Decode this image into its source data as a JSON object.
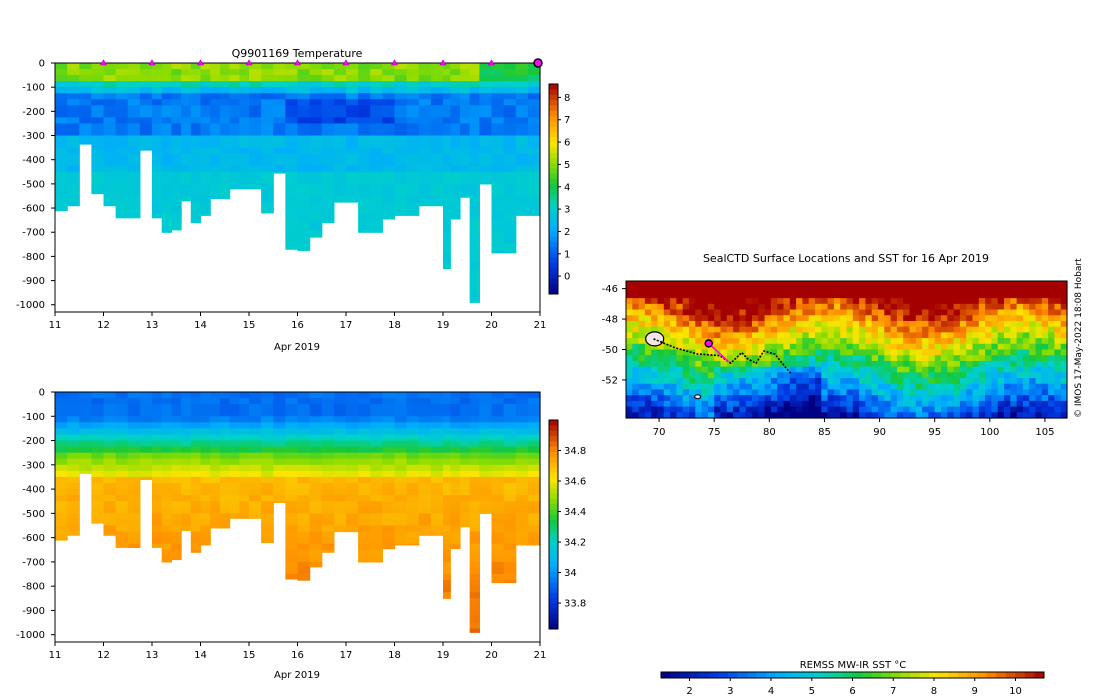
{
  "chart_data": [
    {
      "type": "heatmap",
      "title": "Q9901169  Temperature",
      "xlabel": "Apr 2019",
      "x_ticks": [
        "11",
        "12",
        "13",
        "14",
        "15",
        "16",
        "17",
        "18",
        "19",
        "20",
        "21"
      ],
      "y_ticks": [
        "0",
        "-100",
        "-200",
        "-300",
        "-400",
        "-500",
        "-600",
        "-700",
        "-800",
        "-900",
        "-1000"
      ],
      "xlim": [
        11,
        21
      ],
      "ylim": [
        -1030,
        0
      ],
      "colorbar": {
        "ticks": [
          "0",
          "1",
          "2",
          "3",
          "4",
          "5",
          "6",
          "7",
          "8"
        ],
        "range": [
          -0.8,
          8.6
        ]
      },
      "profile_times": [
        11.0,
        11.25,
        11.5,
        11.75,
        12.0,
        12.25,
        12.5,
        12.75,
        13.0,
        13.2,
        13.4,
        13.6,
        13.8,
        14.0,
        14.2,
        14.4,
        14.6,
        14.8,
        15.0,
        15.25,
        15.5,
        15.75,
        16.0,
        16.25,
        16.5,
        16.75,
        17.0,
        17.25,
        17.5,
        17.75,
        18.0,
        18.25,
        18.5,
        18.75,
        19.0,
        19.15,
        19.35,
        19.55,
        19.75,
        20.0,
        20.25,
        20.5,
        20.75
      ],
      "profile_depths": [
        610,
        590,
        335,
        540,
        590,
        640,
        640,
        360,
        640,
        700,
        690,
        570,
        660,
        630,
        560,
        560,
        520,
        520,
        520,
        620,
        455,
        770,
        775,
        720,
        660,
        575,
        575,
        700,
        700,
        645,
        630,
        630,
        590,
        590,
        850,
        645,
        555,
        990,
        500,
        785,
        785,
        630,
        630
      ],
      "surface_markers": [
        12,
        13,
        14,
        15,
        16,
        17,
        18,
        19,
        20
      ],
      "latest_marker": 21
    },
    {
      "type": "heatmap",
      "title": "",
      "xlabel": "Apr 2019",
      "x_ticks": [
        "11",
        "12",
        "13",
        "14",
        "15",
        "16",
        "17",
        "18",
        "19",
        "20",
        "21"
      ],
      "y_ticks": [
        "0",
        "-100",
        "-200",
        "-300",
        "-400",
        "-500",
        "-600",
        "-700",
        "-800",
        "-900",
        "-1000"
      ],
      "xlim": [
        11,
        21
      ],
      "ylim": [
        -1030,
        0
      ],
      "colorbar": {
        "ticks": [
          "33.8",
          "34",
          "34.2",
          "34.4",
          "34.6",
          "34.8"
        ],
        "range": [
          33.63,
          35.0
        ]
      }
    },
    {
      "type": "heatmap",
      "title": "SealCTD Surface Locations and SST for 16 Apr 2019",
      "x_ticks": [
        "70",
        "75",
        "80",
        "85",
        "90",
        "95",
        "100",
        "105"
      ],
      "y_ticks": [
        "-46",
        "-48",
        "-50",
        "-52"
      ],
      "xlim": [
        67,
        107
      ],
      "ylim": [
        -54.5,
        -45.5
      ],
      "credit": "© IMOS 17-May-2022 18:08 Hobart",
      "colorbar": {
        "label": "REMSS MW-IR SST °C",
        "ticks": [
          "2",
          "3",
          "4",
          "5",
          "6",
          "7",
          "8",
          "9",
          "10"
        ],
        "range": [
          1.3,
          10.7
        ]
      },
      "track": [
        [
          69.5,
          -49.3
        ],
        [
          71.5,
          -49.9
        ],
        [
          73.5,
          -50.3
        ],
        [
          75.5,
          -50.4
        ],
        [
          76.5,
          -50.9
        ],
        [
          77.5,
          -50.2
        ],
        [
          78,
          -50.6
        ],
        [
          78.8,
          -50.9
        ],
        [
          79.5,
          -50.1
        ],
        [
          80.5,
          -50.3
        ],
        [
          81.5,
          -51.2
        ],
        [
          82,
          -51.6
        ]
      ],
      "current_location": [
        74.5,
        -49.6
      ]
    }
  ]
}
